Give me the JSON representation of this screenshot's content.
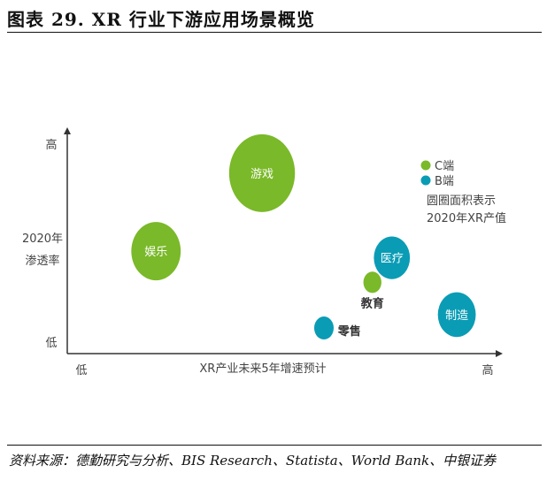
{
  "title": "图表 29. XR 行业下游应用场景概览",
  "source": "资料来源：德勤研究与分析、BIS Research、Statista、World Bank、中银证券",
  "chart_data": {
    "type": "scatter",
    "subtype": "bubble",
    "xlabel": "XR产业未来5年增速预计",
    "ylabel": "2020年渗透率",
    "x_ticks": {
      "low": "低",
      "high": "高"
    },
    "y_ticks": {
      "low": "低",
      "high": "高"
    },
    "xlim": [
      0,
      10
    ],
    "ylim": [
      0,
      10
    ],
    "legend": {
      "position": "top-right",
      "entries": [
        {
          "name": "C端",
          "color": "#7ab929"
        },
        {
          "name": "B端",
          "color": "#0a9cb5"
        }
      ],
      "note": [
        "圆圈面积表示",
        "2020年XR产值"
      ]
    },
    "points": [
      {
        "label": "游戏",
        "x": 4.5,
        "y": 8.1,
        "size": 16,
        "series": "C端",
        "label_pos": "inside"
      },
      {
        "label": "娱乐",
        "x": 2.05,
        "y": 4.6,
        "size": 9,
        "series": "C端",
        "label_pos": "inside"
      },
      {
        "label": "医疗",
        "x": 7.5,
        "y": 4.3,
        "size": 4.8,
        "series": "B端",
        "label_pos": "inside"
      },
      {
        "label": "教育",
        "x": 7.05,
        "y": 3.2,
        "size": 1.2,
        "series": "C端",
        "label_pos": "below"
      },
      {
        "label": "零售",
        "x": 5.93,
        "y": 1.15,
        "size": 1.4,
        "series": "B端",
        "label_pos": "right"
      },
      {
        "label": "制造",
        "x": 9.0,
        "y": 1.75,
        "size": 5.3,
        "series": "B端",
        "label_pos": "inside"
      }
    ]
  }
}
